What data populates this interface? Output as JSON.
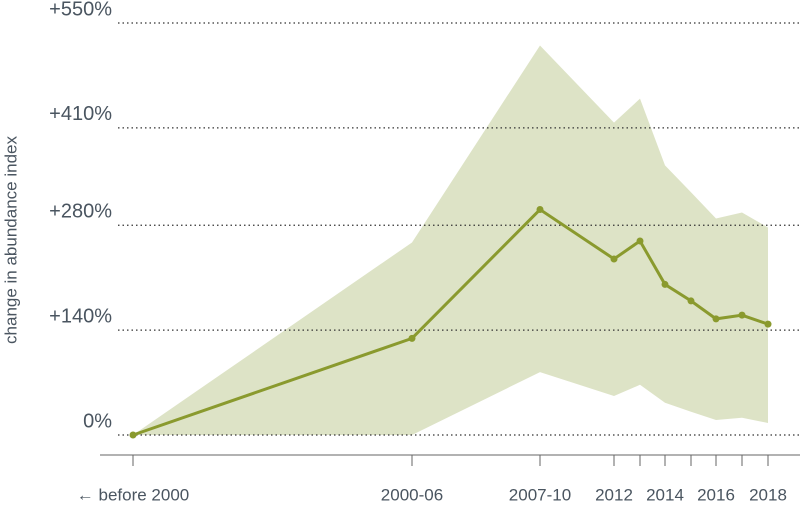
{
  "chart_data": {
    "type": "line",
    "ylabel": "change in abundance index",
    "categories": [
      "← before 2000",
      "2000-06",
      "2007-10",
      "2012",
      null,
      "2014",
      null,
      "2016",
      null,
      "2018"
    ],
    "series": [
      {
        "color": "#8a9a2e",
        "values": [
          0,
          129,
          301,
          235,
          259,
          201,
          179,
          155,
          160,
          148
        ]
      }
    ],
    "band": {
      "color": "#dde3c6",
      "upper": [
        0,
        257,
        520,
        417,
        449,
        360,
        324,
        289,
        297,
        277
      ],
      "lower": [
        0,
        0,
        84,
        52,
        67,
        43,
        31,
        20,
        23,
        16
      ]
    },
    "ylim": [
      0,
      550
    ],
    "yticks": [
      {
        "value": 0,
        "label": "0%"
      },
      {
        "value": 140,
        "label": "+140%"
      },
      {
        "value": 280,
        "label": "+280%"
      },
      {
        "value": 410,
        "label": "+410%"
      },
      {
        "value": 550,
        "label": "+550%"
      }
    ],
    "grid": true
  }
}
